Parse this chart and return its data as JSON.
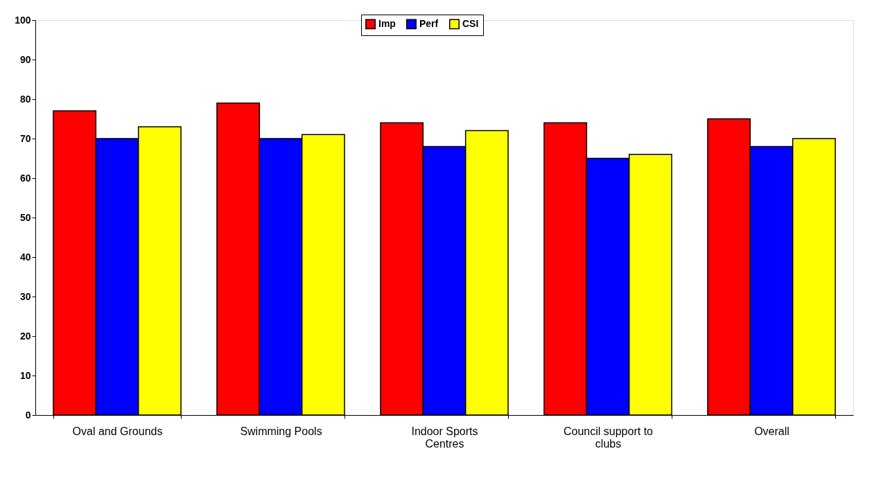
{
  "chart_data": {
    "type": "bar",
    "categories": [
      "Oval and Grounds",
      "Swimming Pools",
      "Indoor Sports Centres",
      "Council support to clubs",
      "Overall"
    ],
    "series": [
      {
        "name": "Imp",
        "color": "#ff0000",
        "values": [
          77,
          79,
          74,
          74,
          75
        ]
      },
      {
        "name": "Perf",
        "color": "#0000ff",
        "values": [
          70,
          70,
          68,
          65,
          68
        ]
      },
      {
        "name": "CSI",
        "color": "#ffff00",
        "values": [
          73,
          71,
          72,
          66,
          70
        ]
      }
    ],
    "ylim": [
      0,
      100
    ],
    "yticks": [
      0,
      10,
      20,
      30,
      40,
      50,
      60,
      70,
      80,
      90,
      100
    ],
    "grid": false,
    "legend": "top"
  }
}
